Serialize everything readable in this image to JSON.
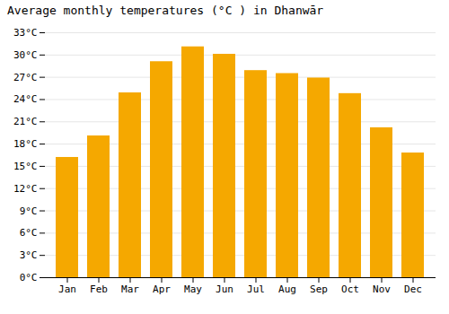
{
  "chart_data": {
    "type": "bar",
    "title": "Average monthly temperatures (°C ) in Dhanwār",
    "categories": [
      "Jan",
      "Feb",
      "Mar",
      "Apr",
      "May",
      "Jun",
      "Jul",
      "Aug",
      "Sep",
      "Oct",
      "Nov",
      "Dec"
    ],
    "values": [
      16.2,
      19.1,
      24.9,
      29.1,
      31.1,
      30.1,
      27.9,
      27.5,
      26.9,
      24.8,
      20.2,
      16.8
    ],
    "color": "#F5A800",
    "ylim": [
      0,
      33
    ],
    "yticks": [
      {
        "value": 0,
        "label": "0°C"
      },
      {
        "value": 3,
        "label": "3°C"
      },
      {
        "value": 6,
        "label": "6°C"
      },
      {
        "value": 9,
        "label": "9°C"
      },
      {
        "value": 12,
        "label": "12°C"
      },
      {
        "value": 15,
        "label": "15°C"
      },
      {
        "value": 18,
        "label": "18°C"
      },
      {
        "value": 21,
        "label": "21°C"
      },
      {
        "value": 24,
        "label": "24°C"
      },
      {
        "value": 27,
        "label": "27°C"
      },
      {
        "value": 30,
        "label": "30°C"
      },
      {
        "value": 33,
        "label": "33°C"
      }
    ],
    "grid": true
  }
}
